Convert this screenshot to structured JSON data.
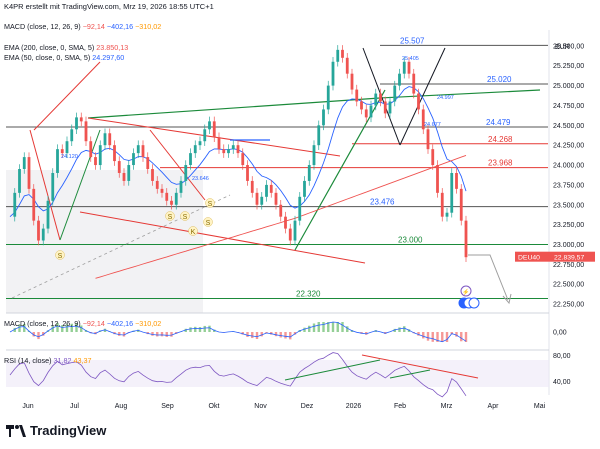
{
  "header": "K4PR erstellt mit TradingView.com, Mrz 19, 2026 18:55 UTC+1",
  "legend_top": {
    "macd_label": "MACD (close, 12, 26, 9)",
    "macd_v1": "−92,14",
    "macd_v2": "−402,16",
    "macd_v3": "−310,02",
    "ema200_label": "EMA (200, close, 0, SMA, 5)",
    "ema200_value": "23.850,13",
    "ema50_label": "EMA (50, close, 0, SMA, 5)",
    "ema50_value": "24.297,60"
  },
  "legend_macd": {
    "label": "MACD (close, 12, 26, 9)",
    "v1": "−92,14",
    "v2": "−402,16",
    "v3": "−310,02"
  },
  "legend_rsi": {
    "label": "RSI (14, close)",
    "v1": "31,82",
    "v2": "43,37"
  },
  "currency": "EUR",
  "symbol_tag": "DEU40",
  "price_tag": "22.839,57",
  "footer_brand": "TradingView",
  "colors": {
    "up": "#26a69a",
    "down": "#ef5350",
    "ema200": "#ef5350",
    "ema50": "#2962ff",
    "green_line": "#1b8a3a",
    "red_line": "#e53935",
    "black_line": "#131722"
  },
  "chart_data": {
    "type": "candlestick",
    "instrument": "DEU40",
    "currency": "EUR",
    "x_ticks": [
      "Jun",
      "Jul",
      "Aug",
      "Sep",
      "Okt",
      "Nov",
      "Dez",
      "2026",
      "Feb",
      "Mrz",
      "Apr",
      "Mai"
    ],
    "y_ticks": [
      "25.500,00",
      "25.250,00",
      "25.000,00",
      "24.750,00",
      "24.500,00",
      "24.250,00",
      "24.000,00",
      "23.750,00",
      "23.500,00",
      "23.250,00",
      "23.000,00",
      "22.750,00",
      "22.500,00",
      "22.250,00"
    ],
    "ylim": [
      22150,
      25700
    ],
    "price_series": [
      23350,
      23650,
      23950,
      24100,
      23700,
      23300,
      23050,
      23200,
      23550,
      23900,
      24200,
      24150,
      24300,
      24450,
      24600,
      24550,
      24300,
      24100,
      24000,
      24250,
      24400,
      24250,
      24050,
      23900,
      23800,
      24000,
      24150,
      24250,
      24100,
      23950,
      23800,
      23700,
      23650,
      23550,
      23500,
      23650,
      23800,
      24000,
      24150,
      24250,
      24300,
      24450,
      24550,
      24350,
      24200,
      24150,
      24200,
      24250,
      24150,
      24000,
      23800,
      23650,
      23500,
      23600,
      23750,
      23650,
      23500,
      23350,
      23200,
      23050,
      23300,
      23600,
      23800,
      24000,
      24250,
      24500,
      24700,
      25000,
      25300,
      25450,
      25350,
      25150,
      24950,
      24800,
      24700,
      24600,
      24750,
      24900,
      24800,
      24650,
      24800,
      25000,
      25150,
      25300,
      25150,
      24900,
      24700,
      24450,
      24200,
      24000,
      23650,
      23350,
      23400,
      23900,
      23700,
      23300,
      22840
    ],
    "horizontal_levels": [
      {
        "label": "25.507",
        "value": 25507
      },
      {
        "label": "25.020",
        "value": 25020
      },
      {
        "label": "24.479",
        "value": 24479
      },
      {
        "label": "24.268",
        "value": 24268
      },
      {
        "label": "23.968",
        "value": 23968
      },
      {
        "label": "23.476",
        "value": 23476
      },
      {
        "label": "23.000",
        "value": 23000
      },
      {
        "label": "22.320",
        "value": 22320
      }
    ],
    "small_labels": [
      "25.405",
      "24.997",
      "24.677",
      "24.120",
      "23.646"
    ],
    "pattern_labels": [
      "S",
      "S",
      "S",
      "K",
      "S",
      "S"
    ],
    "macd_panel": {
      "tick": "0,00"
    },
    "rsi_panel": {
      "ticks": [
        "80,00",
        "40,00"
      ]
    }
  }
}
